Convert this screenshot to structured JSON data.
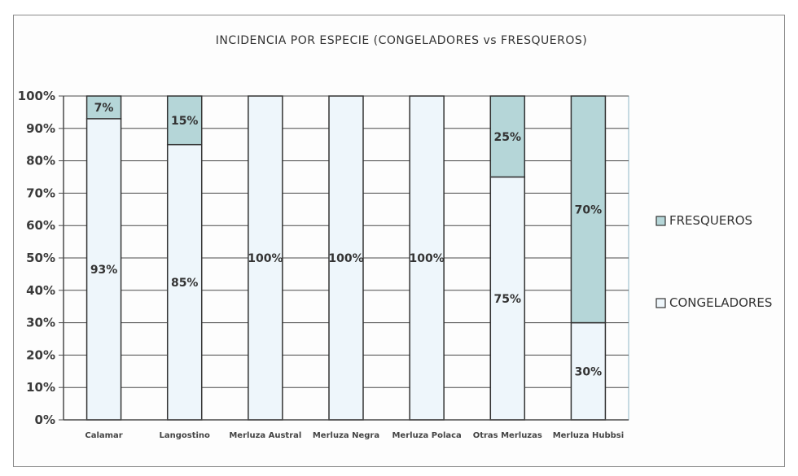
{
  "chart_data": {
    "type": "bar",
    "stacked": true,
    "title": "INCIDENCIA POR ESPECIE (CONGELADORES vs FRESQUEROS)",
    "categories": [
      "Calamar",
      "Langostino",
      "Merluza Austral",
      "Merluza Negra",
      "Merluza Polaca",
      "Otras Merluzas",
      "Merluza Hubbsi"
    ],
    "series": [
      {
        "name": "CONGELADORES",
        "values": [
          93,
          85,
          100,
          100,
          100,
          75,
          30
        ],
        "labels": [
          "93%",
          "85%",
          "100%",
          "100%",
          "100%",
          "75%",
          "30%"
        ],
        "color": "#eef6fb"
      },
      {
        "name": "FRESQUEROS",
        "values": [
          7,
          15,
          0,
          0,
          0,
          25,
          70
        ],
        "labels": [
          "7%",
          "15%",
          "",
          "",
          "",
          "25%",
          "70%"
        ],
        "color": "#b5d6d8"
      }
    ],
    "yticks": [
      "0%",
      "10%",
      "20%",
      "30%",
      "40%",
      "50%",
      "60%",
      "70%",
      "80%",
      "90%",
      "100%"
    ],
    "ylim": [
      0,
      100
    ],
    "grid": true,
    "legend_position": "right",
    "legend": [
      "FRESQUEROS",
      "CONGELADORES"
    ]
  }
}
